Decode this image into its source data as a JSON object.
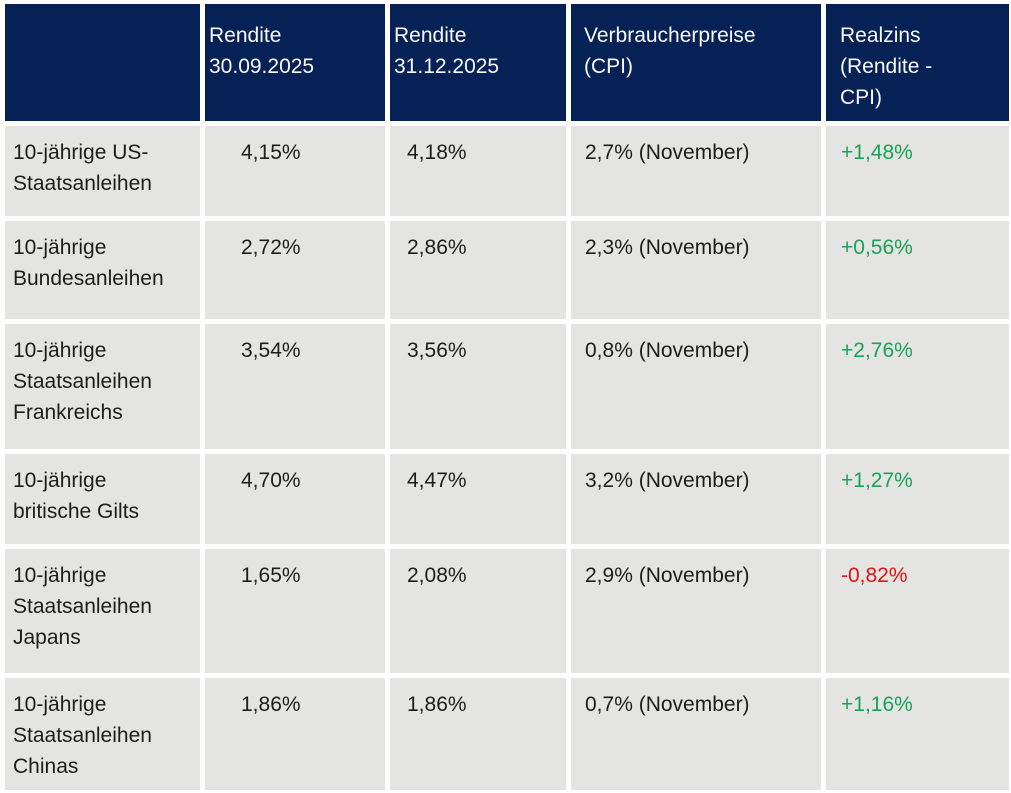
{
  "chart_data": {
    "type": "table",
    "title": "",
    "columns": [
      "",
      "Rendite 30.09.2025",
      "Rendite 31.12.2025",
      "Verbraucherpreise (CPI)",
      "Realzins (Rendite - CPI)"
    ],
    "rows": [
      [
        "10-jährige US-Staatsanleihen",
        "4,15%",
        "4,18%",
        "2,7% (November)",
        "+1,48%"
      ],
      [
        "10-jährige Bundesanleihen",
        "2,72%",
        "2,86%",
        "2,3% (November)",
        "+0,56%"
      ],
      [
        "10-jährige Staatsanleihen Frankreichs",
        "3,54%",
        "3,56%",
        "0,8% (November)",
        "+2,76%"
      ],
      [
        "10-jährige britische Gilts",
        "4,70%",
        "4,47%",
        "3,2% (November)",
        "+1,27%"
      ],
      [
        "10-jährige Staatsanleihen Japans",
        "1,65%",
        "2,08%",
        "2,9% (November)",
        "-0,82%"
      ],
      [
        "10-jährige Staatsanleihen Chinas",
        "1,86%",
        "1,86%",
        "0,7% (November)",
        "+1,16%"
      ]
    ],
    "realzins_numeric": [
      1.48,
      0.56,
      2.76,
      1.27,
      -0.82,
      1.16
    ],
    "layout": "header row dark navy, data cells light gray, white 5px gutters, last column colored by sign"
  },
  "table": {
    "headers": [
      "Rendite\n30.09.2025",
      "Rendite\n31.12.2025",
      "Verbraucherpreise\n(CPI)",
      "Realzins\n(Rendite -\nCPI)"
    ],
    "rows": [
      {
        "label": "10-jährige US-\nStaatsanleihen",
        "rendite_30_09": "4,15%",
        "rendite_31_12": "4,18%",
        "cpi": "2,7% (November)",
        "realzins": "+1,48%",
        "trend": "positive"
      },
      {
        "label": "10-jährige\nBundesanleihen",
        "rendite_30_09": "2,72%",
        "rendite_31_12": "2,86%",
        "cpi": "2,3% (November)",
        "realzins": "+0,56%",
        "trend": "positive"
      },
      {
        "label": "10-jährige\nStaatsanleihen\nFrankreichs",
        "rendite_30_09": "3,54%",
        "rendite_31_12": "3,56%",
        "cpi": "0,8% (November)",
        "realzins": "+2,76%",
        "trend": "positive"
      },
      {
        "label": "10-jährige\nbritische Gilts",
        "rendite_30_09": "4,70%",
        "rendite_31_12": "4,47%",
        "cpi": "3,2% (November)",
        "realzins": "+1,27%",
        "trend": "positive"
      },
      {
        "label": "10-jährige\nStaatsanleihen\nJapans",
        "rendite_30_09": "1,65%",
        "rendite_31_12": "2,08%",
        "cpi": "2,9% (November)",
        "realzins": "-0,82%",
        "trend": "negative"
      },
      {
        "label": "10-jährige\nStaatsanleihen\nChinas",
        "rendite_30_09": "1,86%",
        "rendite_31_12": "1,86%",
        "cpi": "0,7% (November)",
        "realzins": "+1,16%",
        "trend": "positive"
      }
    ]
  },
  "colors": {
    "header_bg": "#062156",
    "header_text": "#f7f8f8",
    "row_bg": "#e4e4e2",
    "text": "#1d1d1d",
    "positive": "#1aa355",
    "negative": "#e01414"
  }
}
